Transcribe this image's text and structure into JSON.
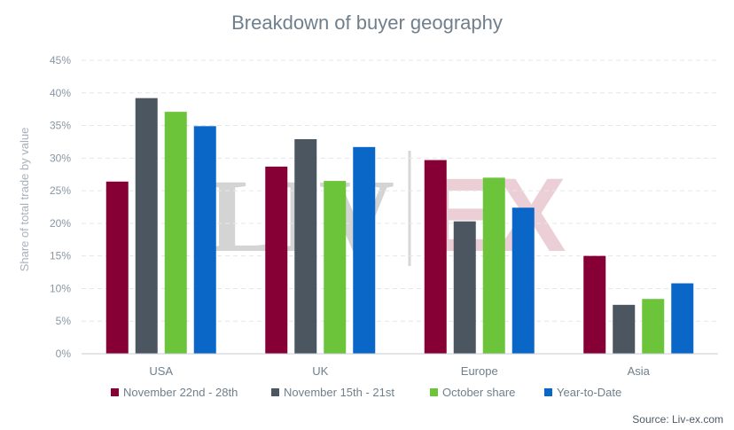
{
  "chart_data": {
    "type": "bar",
    "title": "Breakdown of buyer geography",
    "ylabel": "Share of total trade by value",
    "xlabel": "",
    "ylim": [
      0,
      45
    ],
    "yticks": [
      "0%",
      "5%",
      "10%",
      "15%",
      "20%",
      "25%",
      "30%",
      "35%",
      "40%",
      "45%"
    ],
    "categories": [
      "USA",
      "UK",
      "Europe",
      "Asia"
    ],
    "series": [
      {
        "name": "November 22nd - 28th",
        "color": "#870035",
        "values": [
          26.4,
          28.7,
          29.7,
          15.0
        ]
      },
      {
        "name": "November 15th - 21st",
        "color": "#4b5661",
        "values": [
          39.2,
          32.9,
          20.3,
          7.5
        ]
      },
      {
        "name": "October share",
        "color": "#6cc43a",
        "values": [
          37.1,
          26.5,
          27.0,
          8.4
        ]
      },
      {
        "name": "Year-to-Date",
        "color": "#0a67c8",
        "values": [
          34.9,
          31.7,
          22.4,
          10.8
        ]
      }
    ],
    "grid": true,
    "legend_position": "bottom",
    "source": "Source: Liv-ex.com",
    "watermark": {
      "left": "LIV",
      "right": "EX"
    }
  }
}
